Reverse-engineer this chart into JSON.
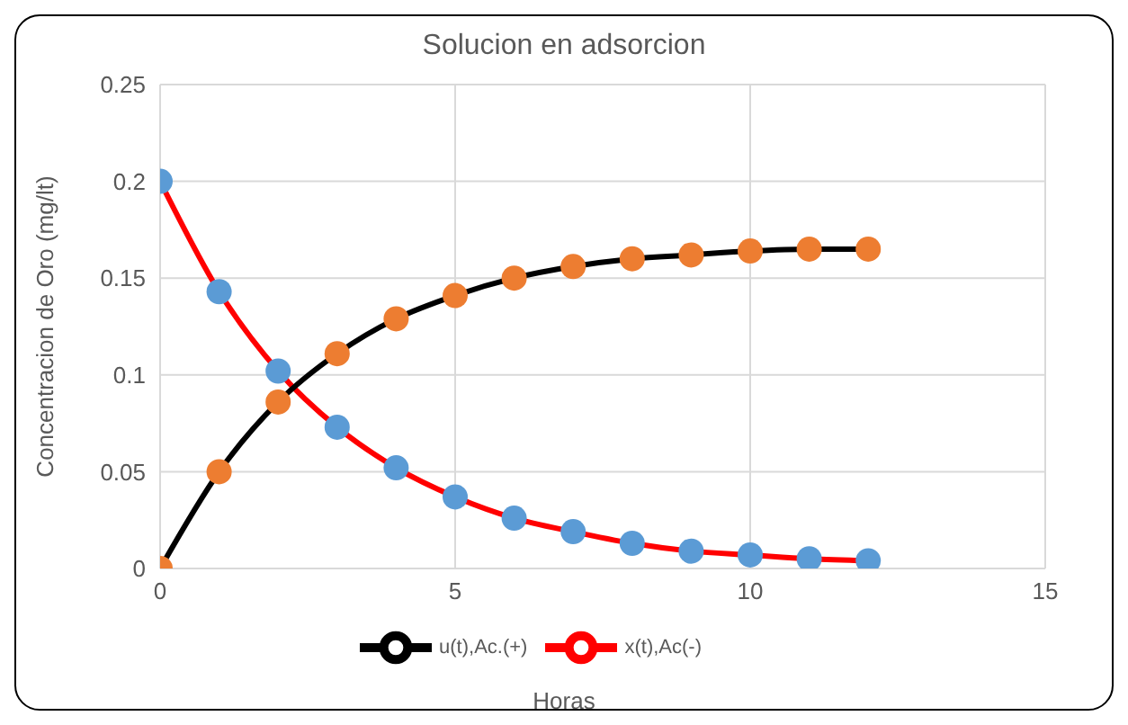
{
  "chart_data": {
    "type": "line",
    "title": "Solucion en adsorcion",
    "xlabel": "Horas",
    "ylabel": "Concentracion de Oro (mg/lt)",
    "x": [
      0,
      1,
      2,
      3,
      4,
      5,
      6,
      7,
      8,
      9,
      10,
      11,
      12
    ],
    "xlim": [
      0,
      15
    ],
    "xticks": [
      0,
      5,
      10,
      15
    ],
    "ylim": [
      0,
      0.25
    ],
    "yticks": [
      0,
      0.05,
      0.1,
      0.15,
      0.2,
      0.25
    ],
    "grid": true,
    "legend": "bottom",
    "marker": "circle",
    "series": [
      {
        "name": "x(t),Ac(-)",
        "color": "#ff0000",
        "colors": [
          "#5b9bd5",
          "#5b9bd5",
          "#5b9bd5",
          "#5b9bd5",
          "#5b9bd5",
          "#5b9bd5",
          "#5b9bd5",
          "#5b9bd5",
          "#5b9bd5",
          "#5b9bd5",
          "#5b9bd5",
          "#5b9bd5",
          "#5b9bd5"
        ],
        "values": [
          0.2,
          0.143,
          0.102,
          0.073,
          0.052,
          0.037,
          0.026,
          0.019,
          0.013,
          0.009,
          0.007,
          0.005,
          0.004
        ]
      },
      {
        "name": "u(t),Ac.(+)",
        "color": "#000000",
        "colors": [
          "#ed7d31",
          "#ed7d31",
          "#ed7d31",
          "#ed7d31",
          "#ed7d31",
          "#ed7d31",
          "#ed7d31",
          "#ed7d31",
          "#ed7d31",
          "#ed7d31",
          "#ed7d31",
          "#ed7d31",
          "#ed7d31"
        ],
        "values": [
          0,
          0.05,
          0.086,
          0.111,
          0.129,
          0.141,
          0.15,
          0.156,
          0.16,
          0.162,
          0.164,
          0.165,
          0.165
        ]
      }
    ]
  }
}
